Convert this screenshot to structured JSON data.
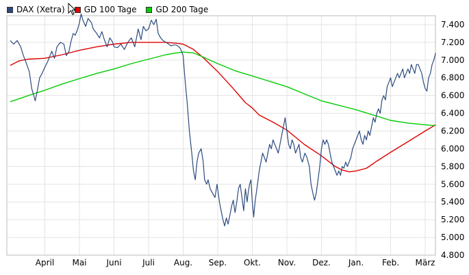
{
  "chart_data": {
    "type": "line",
    "title": "",
    "xlabel": "",
    "ylabel": "",
    "ylim": [
      4800,
      7500
    ],
    "yticks": [
      7400,
      7200,
      7000,
      6800,
      6600,
      6400,
      6200,
      6000,
      5800,
      5600,
      5400,
      5200,
      5000,
      4800
    ],
    "ytick_labels": [
      "7.400",
      "7.200",
      "7.000",
      "6.800",
      "6.600",
      "6.400",
      "6.200",
      "6.000",
      "5.800",
      "5.600",
      "5.400",
      "5.200",
      "5.000",
      "4.800"
    ],
    "x_range": [
      0,
      12.5
    ],
    "months": [
      {
        "label": "April",
        "x": 1
      },
      {
        "label": "Mai",
        "x": 2
      },
      {
        "label": "Juni",
        "x": 3
      },
      {
        "label": "Juli",
        "x": 4
      },
      {
        "label": "Aug.",
        "x": 5
      },
      {
        "label": "Sep.",
        "x": 6
      },
      {
        "label": "Okt.",
        "x": 7
      },
      {
        "label": "Nov.",
        "x": 8
      },
      {
        "label": "Dez.",
        "x": 9
      },
      {
        "label": "Jan.",
        "x": 10
      },
      {
        "label": "Feb.",
        "x": 11
      },
      {
        "label": "März",
        "x": 12
      }
    ],
    "grid": true,
    "legend_position": "top-left",
    "series": [
      {
        "name": "DAX (Xetra)",
        "color": "#2b4a7e",
        "points": [
          [
            0.0,
            7220
          ],
          [
            0.1,
            7180
          ],
          [
            0.2,
            7220
          ],
          [
            0.3,
            7150
          ],
          [
            0.38,
            7050
          ],
          [
            0.45,
            6980
          ],
          [
            0.55,
            6870
          ],
          [
            0.62,
            6680
          ],
          [
            0.68,
            6600
          ],
          [
            0.72,
            6540
          ],
          [
            0.78,
            6650
          ],
          [
            0.85,
            6800
          ],
          [
            0.92,
            6850
          ],
          [
            1.0,
            6920
          ],
          [
            1.08,
            6980
          ],
          [
            1.15,
            7050
          ],
          [
            1.2,
            7100
          ],
          [
            1.28,
            7020
          ],
          [
            1.35,
            7150
          ],
          [
            1.45,
            7200
          ],
          [
            1.55,
            7180
          ],
          [
            1.62,
            7050
          ],
          [
            1.7,
            7100
          ],
          [
            1.75,
            7200
          ],
          [
            1.82,
            7300
          ],
          [
            1.88,
            7280
          ],
          [
            1.95,
            7350
          ],
          [
            2.0,
            7420
          ],
          [
            2.05,
            7520
          ],
          [
            2.1,
            7450
          ],
          [
            2.18,
            7380
          ],
          [
            2.25,
            7470
          ],
          [
            2.35,
            7420
          ],
          [
            2.4,
            7350
          ],
          [
            2.5,
            7300
          ],
          [
            2.58,
            7250
          ],
          [
            2.65,
            7320
          ],
          [
            2.72,
            7230
          ],
          [
            2.8,
            7150
          ],
          [
            2.88,
            7250
          ],
          [
            2.95,
            7210
          ],
          [
            3.0,
            7150
          ],
          [
            3.1,
            7140
          ],
          [
            3.2,
            7180
          ],
          [
            3.3,
            7120
          ],
          [
            3.4,
            7200
          ],
          [
            3.5,
            7250
          ],
          [
            3.6,
            7150
          ],
          [
            3.7,
            7350
          ],
          [
            3.78,
            7230
          ],
          [
            3.85,
            7380
          ],
          [
            3.92,
            7330
          ],
          [
            4.0,
            7350
          ],
          [
            4.08,
            7450
          ],
          [
            4.15,
            7400
          ],
          [
            4.22,
            7460
          ],
          [
            4.28,
            7300
          ],
          [
            4.35,
            7250
          ],
          [
            4.42,
            7220
          ],
          [
            4.5,
            7200
          ],
          [
            4.58,
            7180
          ],
          [
            4.65,
            7160
          ],
          [
            4.72,
            7170
          ],
          [
            4.8,
            7170
          ],
          [
            4.88,
            7150
          ],
          [
            4.92,
            7130
          ],
          [
            5.0,
            7050
          ],
          [
            5.05,
            6800
          ],
          [
            5.12,
            6500
          ],
          [
            5.18,
            6200
          ],
          [
            5.25,
            5950
          ],
          [
            5.3,
            5750
          ],
          [
            5.35,
            5650
          ],
          [
            5.4,
            5850
          ],
          [
            5.45,
            5950
          ],
          [
            5.52,
            6000
          ],
          [
            5.58,
            5850
          ],
          [
            5.62,
            5650
          ],
          [
            5.68,
            5600
          ],
          [
            5.72,
            5650
          ],
          [
            5.78,
            5550
          ],
          [
            5.85,
            5500
          ],
          [
            5.92,
            5450
          ],
          [
            5.98,
            5600
          ],
          [
            6.05,
            5400
          ],
          [
            6.1,
            5300
          ],
          [
            6.15,
            5200
          ],
          [
            6.2,
            5130
          ],
          [
            6.25,
            5220
          ],
          [
            6.3,
            5150
          ],
          [
            6.35,
            5250
          ],
          [
            6.4,
            5350
          ],
          [
            6.45,
            5420
          ],
          [
            6.5,
            5280
          ],
          [
            6.55,
            5400
          ],
          [
            6.6,
            5550
          ],
          [
            6.65,
            5600
          ],
          [
            6.7,
            5450
          ],
          [
            6.75,
            5300
          ],
          [
            6.8,
            5550
          ],
          [
            6.85,
            5400
          ],
          [
            6.88,
            5500
          ],
          [
            6.92,
            5600
          ],
          [
            6.96,
            5650
          ],
          [
            7.0,
            5400
          ],
          [
            7.04,
            5230
          ],
          [
            7.08,
            5400
          ],
          [
            7.15,
            5600
          ],
          [
            7.2,
            5750
          ],
          [
            7.25,
            5850
          ],
          [
            7.3,
            5950
          ],
          [
            7.35,
            5900
          ],
          [
            7.4,
            5850
          ],
          [
            7.45,
            5950
          ],
          [
            7.5,
            6050
          ],
          [
            7.55,
            6000
          ],
          [
            7.6,
            6100
          ],
          [
            7.65,
            6050
          ],
          [
            7.7,
            6000
          ],
          [
            7.75,
            5950
          ],
          [
            7.8,
            6050
          ],
          [
            7.85,
            6150
          ],
          [
            7.9,
            6250
          ],
          [
            7.95,
            6350
          ],
          [
            8.0,
            6200
          ],
          [
            8.05,
            6050
          ],
          [
            8.1,
            6000
          ],
          [
            8.15,
            6100
          ],
          [
            8.2,
            6050
          ],
          [
            8.25,
            5950
          ],
          [
            8.3,
            6000
          ],
          [
            8.35,
            6050
          ],
          [
            8.4,
            5900
          ],
          [
            8.45,
            5850
          ],
          [
            8.52,
            5950
          ],
          [
            8.58,
            5900
          ],
          [
            8.65,
            5800
          ],
          [
            8.7,
            5600
          ],
          [
            8.75,
            5500
          ],
          [
            8.8,
            5420
          ],
          [
            8.85,
            5500
          ],
          [
            8.9,
            5650
          ],
          [
            8.95,
            5800
          ],
          [
            9.0,
            6000
          ],
          [
            9.05,
            6100
          ],
          [
            9.1,
            6050
          ],
          [
            9.15,
            6100
          ],
          [
            9.2,
            6050
          ],
          [
            9.25,
            5950
          ],
          [
            9.3,
            5850
          ],
          [
            9.35,
            5800
          ],
          [
            9.4,
            5750
          ],
          [
            9.45,
            5700
          ],
          [
            9.5,
            5750
          ],
          [
            9.55,
            5700
          ],
          [
            9.6,
            5800
          ],
          [
            9.65,
            5780
          ],
          [
            9.7,
            5850
          ],
          [
            9.75,
            5800
          ],
          [
            9.8,
            5850
          ],
          [
            9.85,
            5900
          ],
          [
            9.9,
            6000
          ],
          [
            9.95,
            6050
          ],
          [
            10.0,
            6100
          ],
          [
            10.05,
            6150
          ],
          [
            10.1,
            6200
          ],
          [
            10.15,
            6100
          ],
          [
            10.2,
            6050
          ],
          [
            10.25,
            6150
          ],
          [
            10.3,
            6100
          ],
          [
            10.35,
            6200
          ],
          [
            10.4,
            6150
          ],
          [
            10.45,
            6250
          ],
          [
            10.5,
            6350
          ],
          [
            10.55,
            6300
          ],
          [
            10.6,
            6400
          ],
          [
            10.65,
            6450
          ],
          [
            10.7,
            6400
          ],
          [
            10.75,
            6550
          ],
          [
            10.8,
            6600
          ],
          [
            10.85,
            6550
          ],
          [
            10.9,
            6700
          ],
          [
            10.95,
            6750
          ],
          [
            11.0,
            6800
          ],
          [
            11.05,
            6700
          ],
          [
            11.1,
            6750
          ],
          [
            11.15,
            6800
          ],
          [
            11.2,
            6850
          ],
          [
            11.25,
            6800
          ],
          [
            11.3,
            6850
          ],
          [
            11.35,
            6900
          ],
          [
            11.4,
            6800
          ],
          [
            11.45,
            6850
          ],
          [
            11.5,
            6900
          ],
          [
            11.55,
            6850
          ],
          [
            11.6,
            6950
          ],
          [
            11.65,
            6900
          ],
          [
            11.7,
            6850
          ],
          [
            11.75,
            6950
          ],
          [
            11.8,
            6950
          ],
          [
            11.85,
            6900
          ],
          [
            11.9,
            6850
          ],
          [
            11.95,
            6750
          ],
          [
            12.0,
            6680
          ],
          [
            12.05,
            6650
          ],
          [
            12.1,
            6800
          ],
          [
            12.15,
            6850
          ],
          [
            12.2,
            6950
          ],
          [
            12.25,
            7000
          ],
          [
            12.3,
            7080
          ]
        ]
      },
      {
        "name": "GD 100 Tage",
        "color": "#e00000",
        "points": [
          [
            0.0,
            6940
          ],
          [
            0.25,
            6990
          ],
          [
            0.5,
            7010
          ],
          [
            1.0,
            7020
          ],
          [
            1.5,
            7060
          ],
          [
            2.0,
            7110
          ],
          [
            2.5,
            7150
          ],
          [
            3.0,
            7180
          ],
          [
            3.5,
            7200
          ],
          [
            4.0,
            7200
          ],
          [
            4.5,
            7200
          ],
          [
            4.8,
            7190
          ],
          [
            5.0,
            7180
          ],
          [
            5.3,
            7120
          ],
          [
            5.6,
            7020
          ],
          [
            6.0,
            6870
          ],
          [
            6.4,
            6700
          ],
          [
            6.8,
            6520
          ],
          [
            7.0,
            6460
          ],
          [
            7.2,
            6380
          ],
          [
            7.6,
            6300
          ],
          [
            8.0,
            6210
          ],
          [
            8.5,
            6050
          ],
          [
            9.0,
            5920
          ],
          [
            9.4,
            5800
          ],
          [
            9.6,
            5760
          ],
          [
            9.8,
            5740
          ],
          [
            10.0,
            5750
          ],
          [
            10.3,
            5780
          ],
          [
            10.6,
            5860
          ],
          [
            11.0,
            5960
          ],
          [
            11.5,
            6080
          ],
          [
            12.0,
            6200
          ],
          [
            12.3,
            6270
          ]
        ]
      },
      {
        "name": "GD 200 Tage",
        "color": "#00cc00",
        "points": [
          [
            0.0,
            6530
          ],
          [
            0.3,
            6570
          ],
          [
            0.6,
            6610
          ],
          [
            1.0,
            6660
          ],
          [
            1.5,
            6730
          ],
          [
            2.0,
            6790
          ],
          [
            2.5,
            6850
          ],
          [
            3.0,
            6900
          ],
          [
            3.5,
            6960
          ],
          [
            4.0,
            7010
          ],
          [
            4.5,
            7060
          ],
          [
            4.8,
            7080
          ],
          [
            5.0,
            7090
          ],
          [
            5.3,
            7080
          ],
          [
            5.6,
            7030
          ],
          [
            6.0,
            6960
          ],
          [
            6.5,
            6880
          ],
          [
            7.0,
            6820
          ],
          [
            7.5,
            6760
          ],
          [
            8.0,
            6700
          ],
          [
            8.5,
            6620
          ],
          [
            9.0,
            6540
          ],
          [
            9.5,
            6490
          ],
          [
            10.0,
            6440
          ],
          [
            10.5,
            6380
          ],
          [
            11.0,
            6320
          ],
          [
            11.5,
            6290
          ],
          [
            12.0,
            6270
          ],
          [
            12.3,
            6260
          ]
        ]
      }
    ]
  }
}
